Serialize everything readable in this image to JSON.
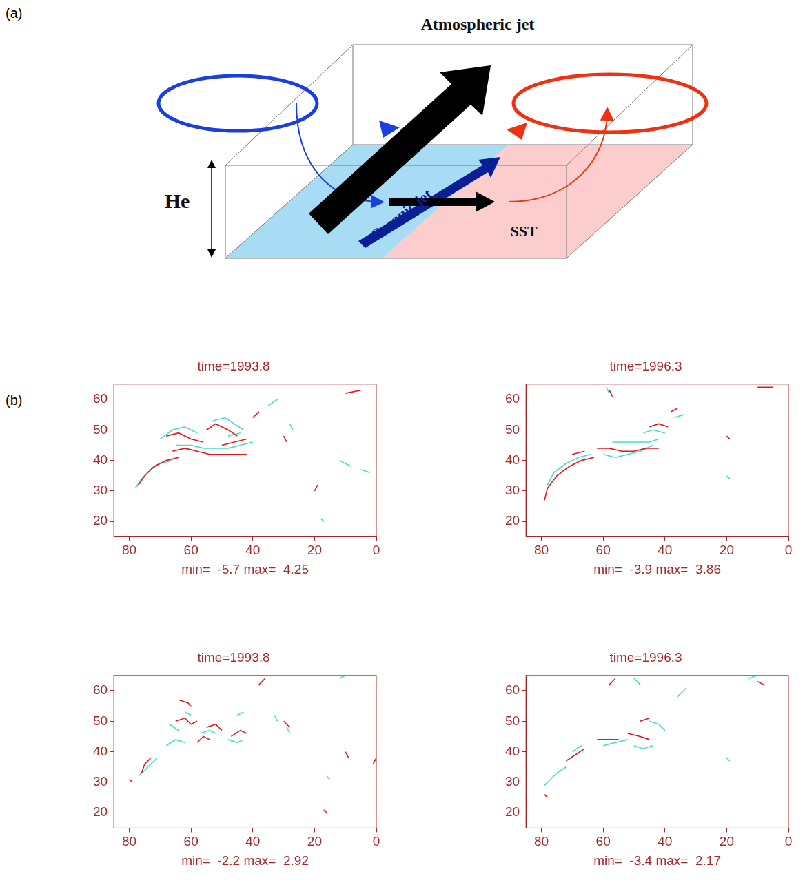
{
  "panel_labels": [
    "(a)",
    "(b)"
  ],
  "diagram": {
    "title": "Atmospheric jet",
    "depth_label": "He",
    "ocean_label": "Oceanic jet",
    "sst_label": "SST"
  },
  "chart_data": [
    {
      "type": "line",
      "title": "time=1993.8",
      "xlabel": "min=  -5.7 max=  4.25",
      "xlim": [
        85,
        0
      ],
      "ylim": [
        15,
        65
      ],
      "xticks": [
        80,
        60,
        40,
        20,
        0
      ],
      "yticks": [
        20,
        30,
        40,
        50,
        60
      ],
      "grid": false,
      "series": [
        {
          "color": "#e8141e",
          "lines": [
            [
              [
                77,
                32
              ],
              [
                75,
                35
              ],
              [
                72,
                38
              ],
              [
                68,
                40
              ],
              [
                64,
                41
              ]
            ],
            [
              [
                66,
                43
              ],
              [
                62,
                44
              ],
              [
                58,
                43
              ],
              [
                54,
                42
              ],
              [
                50,
                42
              ],
              [
                46,
                42
              ],
              [
                42,
                42
              ]
            ],
            [
              [
                68,
                48
              ],
              [
                64,
                49
              ],
              [
                60,
                47
              ],
              [
                56,
                46
              ]
            ],
            [
              [
                55,
                50
              ],
              [
                52,
                52
              ],
              [
                48,
                50
              ],
              [
                45,
                48
              ]
            ],
            [
              [
                50,
                45
              ],
              [
                46,
                46
              ],
              [
                42,
                47
              ]
            ],
            [
              [
                40,
                54
              ],
              [
                38,
                56
              ]
            ],
            [
              [
                30,
                48
              ],
              [
                29,
                46
              ]
            ],
            [
              [
                20,
                30
              ],
              [
                19,
                32
              ]
            ],
            [
              [
                10,
                62
              ],
              [
                5,
                63
              ]
            ]
          ]
        },
        {
          "color": "#40e0d0",
          "lines": [
            [
              [
                78,
                31
              ],
              [
                76,
                34
              ],
              [
                73,
                37
              ],
              [
                70,
                39
              ],
              [
                66,
                40
              ]
            ],
            [
              [
                65,
                45
              ],
              [
                60,
                45
              ],
              [
                56,
                44
              ],
              [
                52,
                44
              ],
              [
                48,
                44
              ],
              [
                44,
                45
              ],
              [
                40,
                46
              ]
            ],
            [
              [
                70,
                47
              ],
              [
                66,
                50
              ],
              [
                62,
                51
              ],
              [
                58,
                49
              ]
            ],
            [
              [
                53,
                53
              ],
              [
                49,
                54
              ],
              [
                46,
                52
              ],
              [
                43,
                50
              ]
            ],
            [
              [
                48,
                48
              ],
              [
                44,
                49
              ]
            ],
            [
              [
                35,
                58
              ],
              [
                32,
                60
              ]
            ],
            [
              [
                28,
                52
              ],
              [
                27,
                50
              ]
            ],
            [
              [
                12,
                40
              ],
              [
                8,
                38
              ]
            ],
            [
              [
                18,
                21
              ],
              [
                17,
                20
              ]
            ],
            [
              [
                5,
                37
              ],
              [
                2,
                36
              ]
            ]
          ]
        }
      ]
    },
    {
      "type": "line",
      "title": "time=1996.3",
      "xlabel": "min=  -3.9 max=  3.86",
      "xlim": [
        85,
        0
      ],
      "ylim": [
        15,
        65
      ],
      "xticks": [
        80,
        60,
        40,
        20,
        0
      ],
      "yticks": [
        20,
        30,
        40,
        50,
        60
      ],
      "grid": false,
      "series": [
        {
          "color": "#e8141e",
          "lines": [
            [
              [
                79,
                27
              ],
              [
                78,
                31
              ],
              [
                75,
                35
              ],
              [
                71,
                38
              ],
              [
                67,
                40
              ],
              [
                63,
                41
              ]
            ],
            [
              [
                62,
                44
              ],
              [
                58,
                44
              ],
              [
                54,
                43
              ],
              [
                50,
                43
              ],
              [
                46,
                44
              ],
              [
                42,
                44
              ]
            ],
            [
              [
                70,
                42
              ],
              [
                66,
                43
              ]
            ],
            [
              [
                45,
                51
              ],
              [
                42,
                52
              ],
              [
                39,
                51
              ]
            ],
            [
              [
                38,
                56
              ],
              [
                36,
                57
              ]
            ],
            [
              [
                58,
                63
              ],
              [
                57,
                61
              ]
            ],
            [
              [
                20,
                48
              ],
              [
                19,
                47
              ]
            ],
            [
              [
                10,
                64
              ],
              [
                5,
                64
              ]
            ]
          ]
        },
        {
          "color": "#40e0d0",
          "lines": [
            [
              [
                78,
                32
              ],
              [
                76,
                36
              ],
              [
                72,
                39
              ],
              [
                68,
                41
              ],
              [
                64,
                42
              ]
            ],
            [
              [
                60,
                42
              ],
              [
                56,
                41
              ],
              [
                52,
                42
              ],
              [
                48,
                43
              ],
              [
                44,
                45
              ]
            ],
            [
              [
                57,
                46
              ],
              [
                53,
                46
              ],
              [
                49,
                46
              ],
              [
                45,
                46
              ],
              [
                42,
                47
              ]
            ],
            [
              [
                47,
                49
              ],
              [
                44,
                50
              ],
              [
                40,
                49
              ]
            ],
            [
              [
                37,
                54
              ],
              [
                34,
                55
              ]
            ],
            [
              [
                59,
                64
              ],
              [
                58,
                62
              ]
            ],
            [
              [
                20,
                35
              ],
              [
                19,
                34
              ]
            ]
          ]
        }
      ]
    },
    {
      "type": "line",
      "title": "time=1993.8",
      "xlabel": "min=  -2.2 max=  2.92",
      "xlim": [
        85,
        0
      ],
      "ylim": [
        15,
        65
      ],
      "xticks": [
        80,
        60,
        40,
        20,
        0
      ],
      "yticks": [
        20,
        30,
        40,
        50,
        60
      ],
      "grid": false,
      "series": [
        {
          "color": "#e8141e",
          "lines": [
            [
              [
                80,
                31
              ],
              [
                79,
                30
              ]
            ],
            [
              [
                76,
                33
              ],
              [
                75,
                36
              ],
              [
                73,
                38
              ]
            ],
            [
              [
                64,
                57
              ],
              [
                61,
                56
              ],
              [
                60,
                55
              ]
            ],
            [
              [
                65,
                50
              ],
              [
                62,
                51
              ],
              [
                60,
                49
              ],
              [
                58,
                50
              ]
            ],
            [
              [
                55,
                48
              ],
              [
                52,
                49
              ],
              [
                50,
                47
              ]
            ],
            [
              [
                47,
                45
              ],
              [
                44,
                47
              ],
              [
                42,
                46
              ]
            ],
            [
              [
                58,
                43
              ],
              [
                56,
                45
              ],
              [
                54,
                44
              ]
            ],
            [
              [
                38,
                62
              ],
              [
                36,
                64
              ]
            ],
            [
              [
                30,
                50
              ],
              [
                28,
                48
              ]
            ],
            [
              [
                17,
                21
              ],
              [
                16,
                20
              ]
            ],
            [
              [
                10,
                40
              ],
              [
                9,
                38
              ]
            ],
            [
              [
                0,
                38
              ],
              [
                1,
                36
              ]
            ]
          ]
        },
        {
          "color": "#40e0d0",
          "lines": [
            [
              [
                77,
                32
              ],
              [
                74,
                35
              ],
              [
                71,
                38
              ]
            ],
            [
              [
                68,
                42
              ],
              [
                65,
                44
              ],
              [
                62,
                43
              ]
            ],
            [
              [
                62,
                53
              ],
              [
                60,
                52
              ]
            ],
            [
              [
                57,
                46
              ],
              [
                54,
                47
              ],
              [
                52,
                46
              ]
            ],
            [
              [
                48,
                44
              ],
              [
                45,
                43
              ],
              [
                43,
                44
              ]
            ],
            [
              [
                67,
                49
              ],
              [
                64,
                47
              ]
            ],
            [
              [
                45,
                52
              ],
              [
                43,
                53
              ]
            ],
            [
              [
                33,
                52
              ],
              [
                32,
                50
              ]
            ],
            [
              [
                29,
                48
              ],
              [
                28,
                46
              ]
            ],
            [
              [
                15,
                31
              ],
              [
                16,
                32
              ]
            ],
            [
              [
                12,
                64
              ],
              [
                10,
                65
              ]
            ]
          ]
        }
      ]
    },
    {
      "type": "line",
      "title": "time=1996.3",
      "xlabel": "min=  -3.4 max=  2.17",
      "xlim": [
        85,
        0
      ],
      "ylim": [
        15,
        65
      ],
      "xticks": [
        80,
        60,
        40,
        20,
        0
      ],
      "yticks": [
        20,
        30,
        40,
        50,
        60
      ],
      "grid": false,
      "series": [
        {
          "color": "#e8141e",
          "lines": [
            [
              [
                79,
                26
              ],
              [
                78,
                25
              ]
            ],
            [
              [
                72,
                37
              ],
              [
                69,
                39
              ],
              [
                66,
                41
              ]
            ],
            [
              [
                62,
                44
              ],
              [
                58,
                44
              ],
              [
                55,
                44
              ]
            ],
            [
              [
                52,
                46
              ],
              [
                48,
                45
              ],
              [
                45,
                44
              ]
            ],
            [
              [
                48,
                50
              ],
              [
                45,
                51
              ]
            ],
            [
              [
                58,
                62
              ],
              [
                56,
                64
              ]
            ],
            [
              [
                10,
                63
              ],
              [
                8,
                62
              ]
            ]
          ]
        },
        {
          "color": "#40e0d0",
          "lines": [
            [
              [
                79,
                29
              ],
              [
                77,
                31
              ],
              [
                75,
                33
              ],
              [
                72,
                35
              ]
            ],
            [
              [
                70,
                40
              ],
              [
                67,
                42
              ]
            ],
            [
              [
                60,
                42
              ],
              [
                56,
                43
              ],
              [
                52,
                44
              ]
            ],
            [
              [
                50,
                42
              ],
              [
                47,
                41
              ],
              [
                44,
                42
              ]
            ],
            [
              [
                45,
                50
              ],
              [
                42,
                49
              ],
              [
                40,
                47
              ]
            ],
            [
              [
                36,
                58
              ],
              [
                33,
                61
              ]
            ],
            [
              [
                50,
                64
              ],
              [
                48,
                62
              ]
            ],
            [
              [
                20,
                38
              ],
              [
                19,
                37
              ]
            ],
            [
              [
                13,
                64
              ],
              [
                10,
                65
              ]
            ]
          ]
        }
      ]
    }
  ]
}
